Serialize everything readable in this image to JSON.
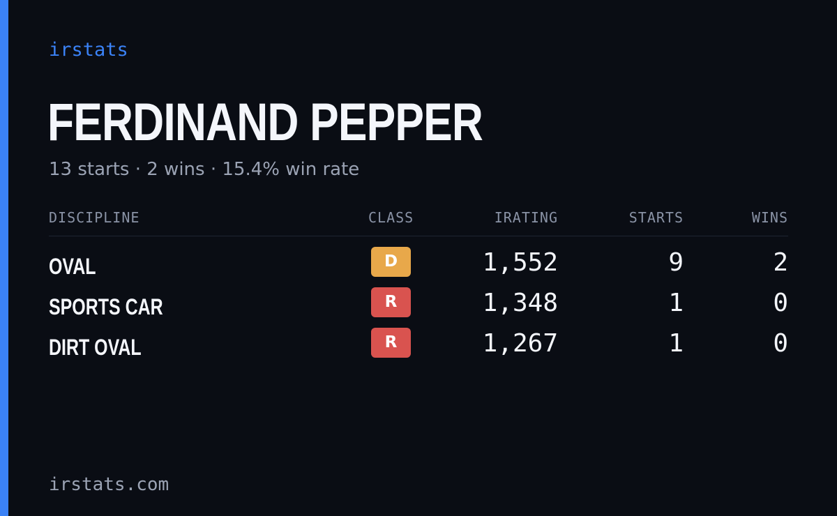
{
  "brand": "irstats",
  "driver": {
    "name": "FERDINAND PEPPER",
    "summary": "13 starts · 2 wins · 15.4% win rate"
  },
  "table": {
    "headers": {
      "discipline": "DISCIPLINE",
      "class": "CLASS",
      "irating": "IRATING",
      "starts": "STARTS",
      "wins": "WINS"
    },
    "rows": [
      {
        "discipline": "OVAL",
        "class": "D",
        "class_color": "#e8a84a",
        "irating": "1,552",
        "starts": "9",
        "wins": "2"
      },
      {
        "discipline": "SPORTS CAR",
        "class": "R",
        "class_color": "#d9534f",
        "irating": "1,348",
        "starts": "1",
        "wins": "0"
      },
      {
        "discipline": "DIRT OVAL",
        "class": "R",
        "class_color": "#d9534f",
        "irating": "1,267",
        "starts": "1",
        "wins": "0"
      }
    ]
  },
  "footer": "irstats.com",
  "colors": {
    "background": "#0a0d14",
    "accent": "#3b82f6",
    "text_primary": "#f4f6fb",
    "text_muted": "#9ba3b4"
  }
}
